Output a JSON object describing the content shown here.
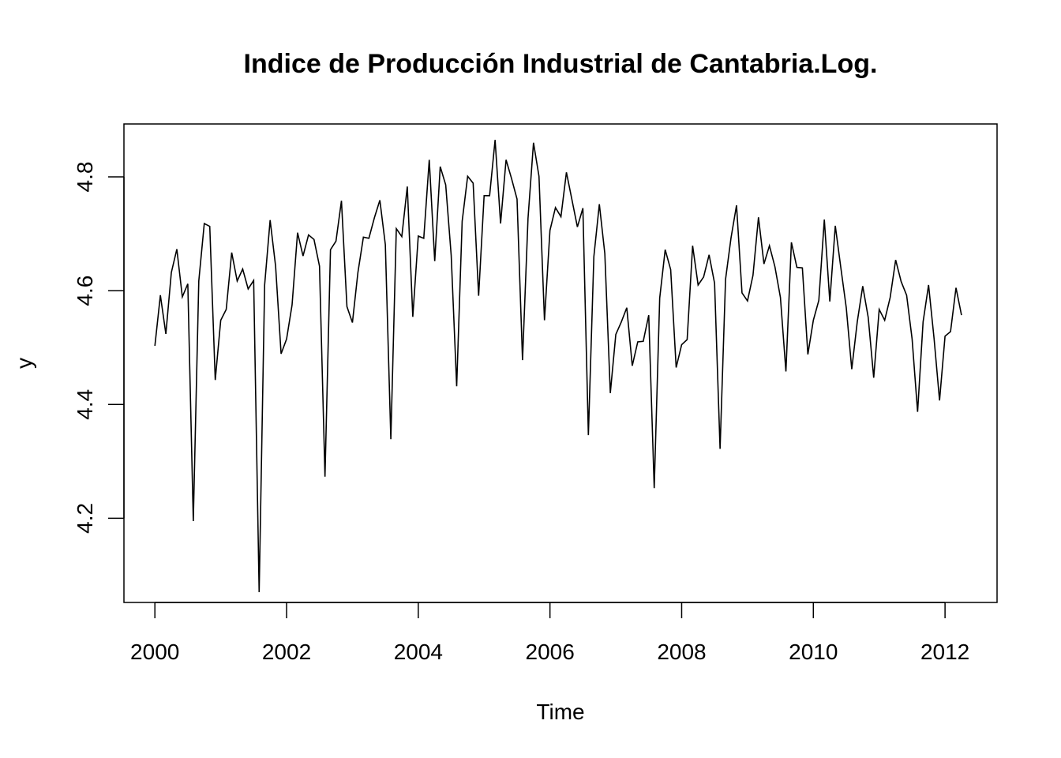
{
  "chart_data": {
    "type": "line",
    "title": "Indice de Producción Industrial de Cantabria.Log.",
    "xlabel": "Time",
    "ylabel": "y",
    "start": 2000,
    "frequency": 12,
    "xlim": [
      1999.53,
      2012.79
    ],
    "ylim": [
      4.052,
      4.893
    ],
    "xticks": [
      2000,
      2002,
      2004,
      2006,
      2008,
      2010,
      2012
    ],
    "xtick_labels": [
      "2000",
      "2002",
      "2004",
      "2006",
      "2008",
      "2010",
      "2012"
    ],
    "yticks": [
      4.2,
      4.4,
      4.6,
      4.8
    ],
    "ytick_labels": [
      "4.2",
      "4.4",
      "4.6",
      "4.8"
    ],
    "grid": false,
    "series": [
      {
        "name": "y",
        "color": "#000000",
        "values": [
          4.503,
          4.592,
          4.524,
          4.632,
          4.673,
          4.589,
          4.612,
          4.195,
          4.617,
          4.718,
          4.713,
          4.443,
          4.548,
          4.567,
          4.667,
          4.617,
          4.638,
          4.603,
          4.618,
          4.07,
          4.61,
          4.724,
          4.643,
          4.489,
          4.515,
          4.575,
          4.702,
          4.661,
          4.698,
          4.69,
          4.643,
          4.273,
          4.672,
          4.687,
          4.758,
          4.572,
          4.544,
          4.632,
          4.694,
          4.692,
          4.728,
          4.759,
          4.681,
          4.339,
          4.709,
          4.695,
          4.783,
          4.554,
          4.696,
          4.692,
          4.83,
          4.652,
          4.818,
          4.786,
          4.662,
          4.432,
          4.722,
          4.801,
          4.789,
          4.591,
          4.767,
          4.767,
          4.865,
          4.718,
          4.83,
          4.797,
          4.761,
          4.478,
          4.727,
          4.86,
          4.801,
          4.548,
          4.706,
          4.746,
          4.73,
          4.808,
          4.76,
          4.712,
          4.745,
          4.346,
          4.66,
          4.752,
          4.665,
          4.42,
          4.523,
          4.545,
          4.57,
          4.468,
          4.51,
          4.511,
          4.557,
          4.253,
          4.587,
          4.672,
          4.637,
          4.465,
          4.505,
          4.514,
          4.679,
          4.61,
          4.624,
          4.663,
          4.613,
          4.322,
          4.62,
          4.693,
          4.75,
          4.596,
          4.582,
          4.627,
          4.729,
          4.647,
          4.679,
          4.642,
          4.588,
          4.458,
          4.685,
          4.641,
          4.64,
          4.488,
          4.548,
          4.583,
          4.725,
          4.581,
          4.714,
          4.641,
          4.57,
          4.462,
          4.545,
          4.608,
          4.553,
          4.447,
          4.567,
          4.548,
          4.588,
          4.654,
          4.616,
          4.592,
          4.515,
          4.387,
          4.545,
          4.61,
          4.516,
          4.407,
          4.52,
          4.528,
          4.605,
          4.557
        ]
      }
    ]
  }
}
